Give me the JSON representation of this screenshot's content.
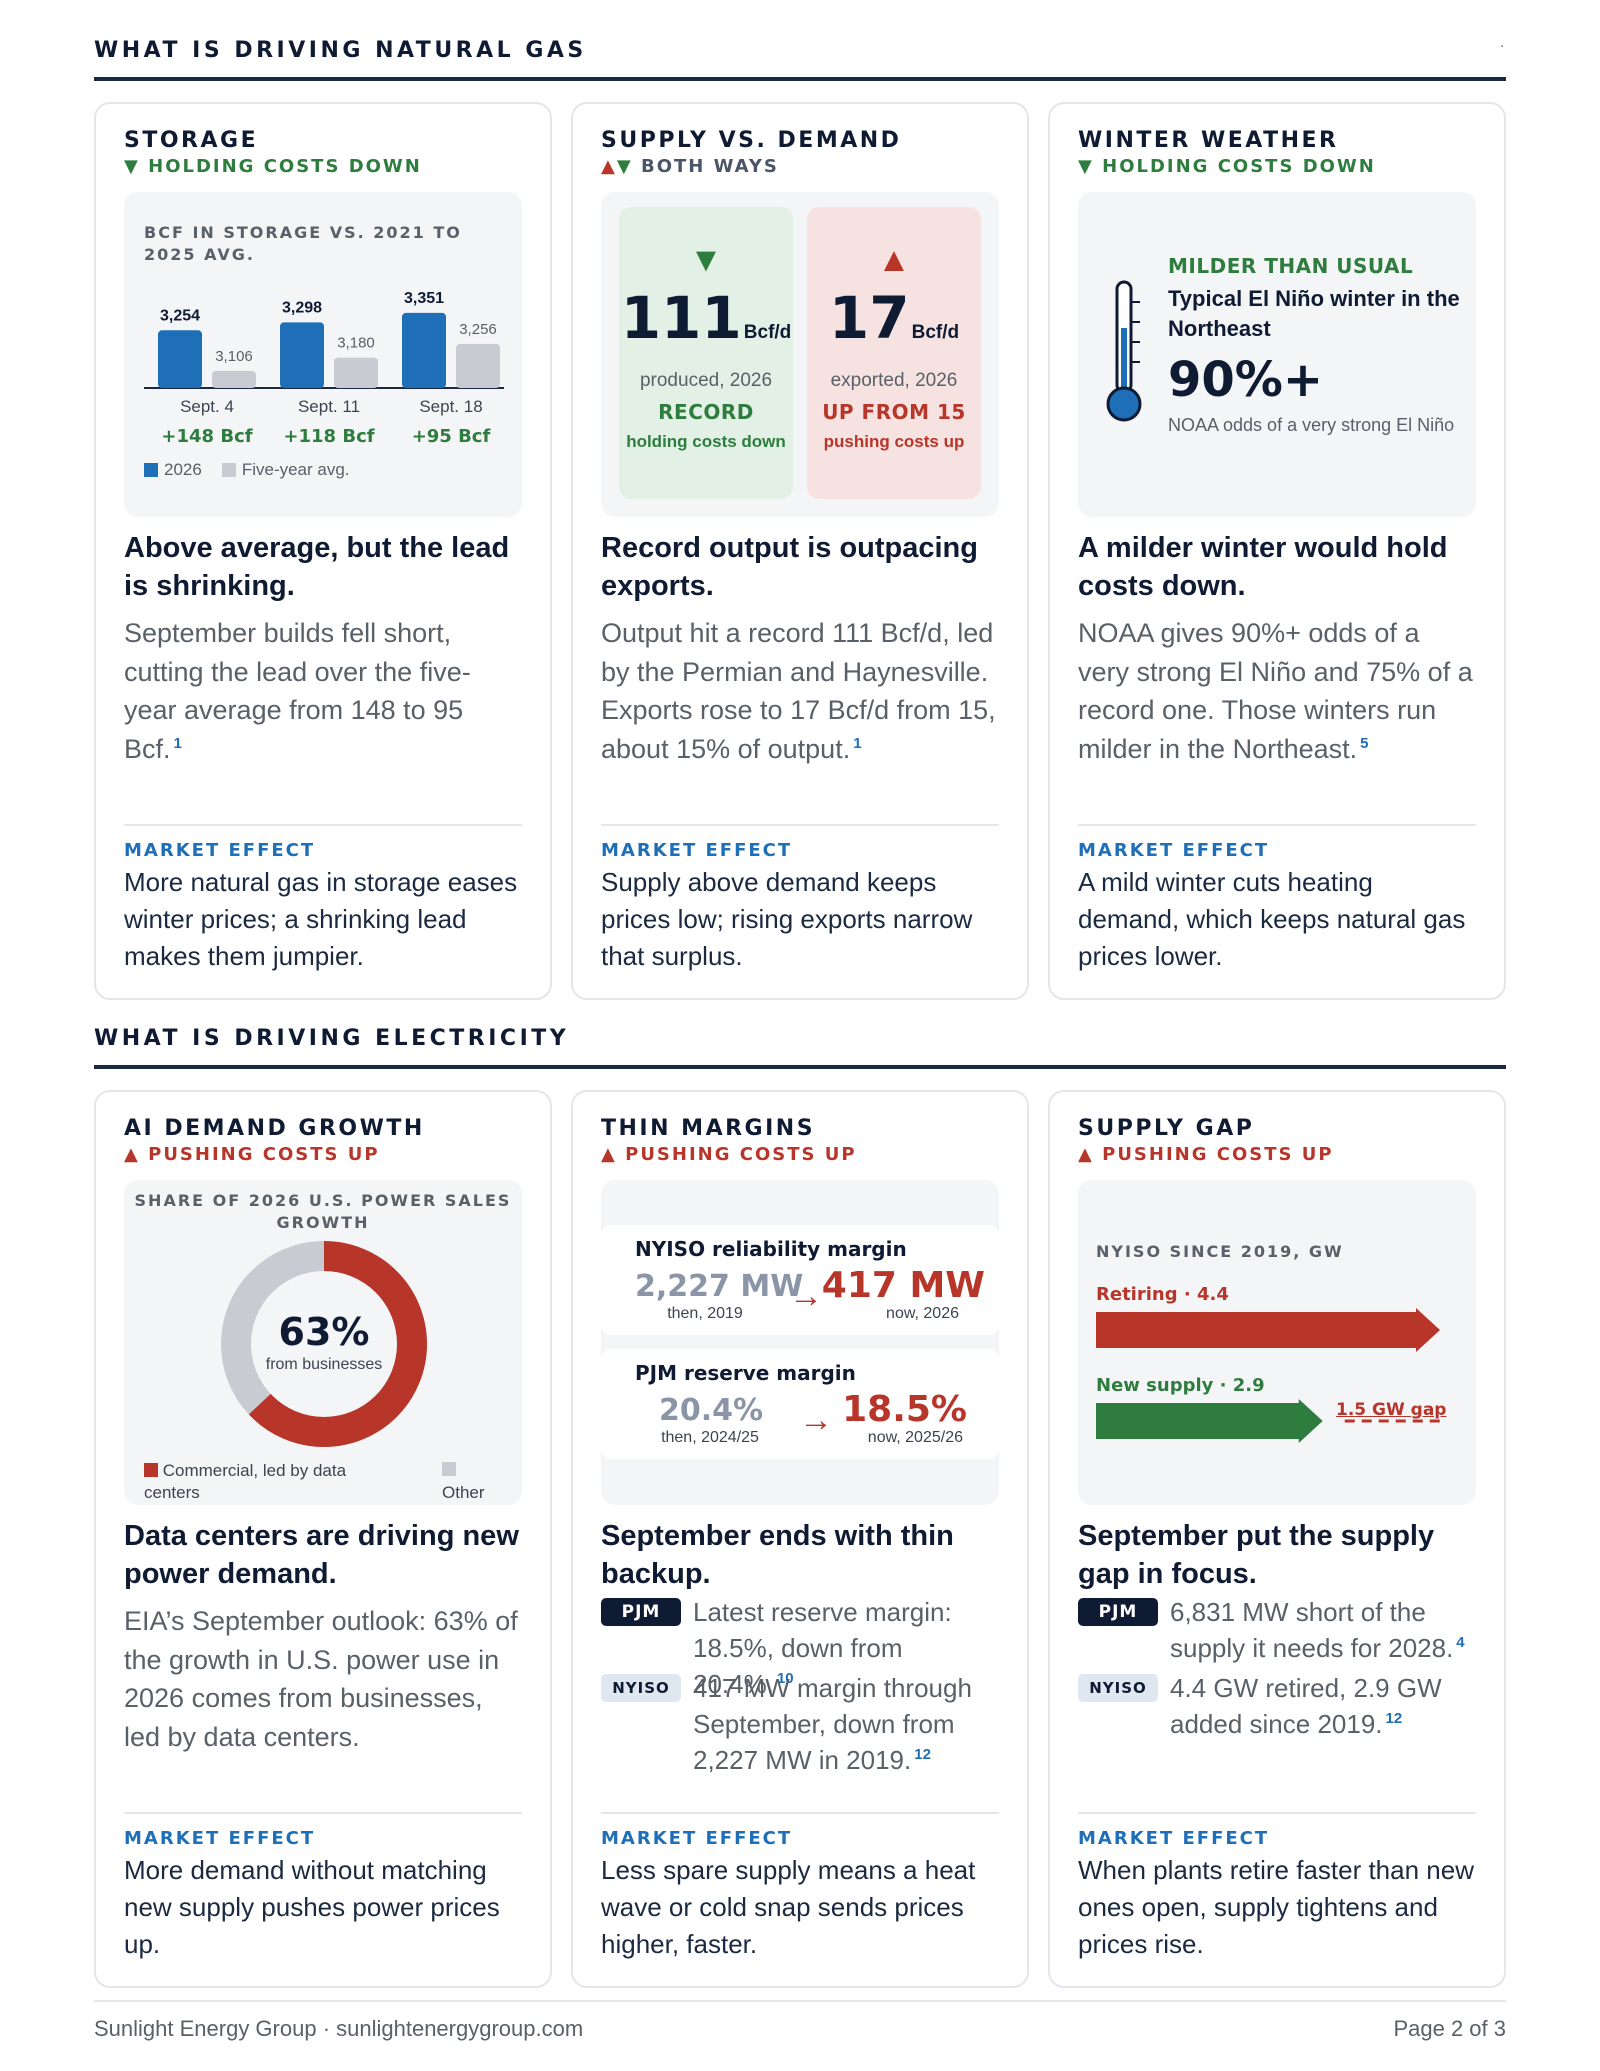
{
  "sections": {
    "gas_title": "WHAT IS DRIVING NATURAL GAS",
    "gas_dot": ".",
    "elec_title": "WHAT IS DRIVING ELECTRICITY"
  },
  "storage": {
    "title": "STORAGE",
    "status_arrow": "▼",
    "status": "HOLDING COSTS DOWN",
    "chart_title": "BCF IN STORAGE VS. 2021 TO 2025 AVG.",
    "headline": "Above average, but the lead is shrinking.",
    "body": "September builds fell short, cutting the lead over the five-year average from 148 to 95 Bcf.",
    "fn": "1",
    "effect_label": "MARKET EFFECT",
    "effect": "More natural gas in storage eases winter prices; a shrinking lead makes them jumpier.",
    "legend_2026": "2026",
    "legend_avg": "Five-year avg."
  },
  "supply_demand": {
    "title": "SUPPLY VS. DEMAND",
    "status_up": "▲",
    "status_down": "▼",
    "status": "BOTH WAYS",
    "produced_arrow": "▼",
    "produced_num": "111",
    "produced_unit": "Bcf/d",
    "produced_sub": "produced, 2026",
    "produced_tag": "RECORD",
    "produced_note": "holding costs down",
    "exported_arrow": "▲",
    "exported_num": "17",
    "exported_unit": "Bcf/d",
    "exported_sub": "exported, 2026",
    "exported_tag": "UP FROM 15",
    "exported_note": "pushing costs up",
    "headline": "Record output is outpacing exports.",
    "body": "Output hit a record 111 Bcf/d, led by the Permian and Haynesville. Exports rose to 17 Bcf/d from 15, about 15% of output.",
    "fn": "1",
    "effect_label": "MARKET EFFECT",
    "effect": "Supply above demand keeps prices low; rising exports narrow that surplus."
  },
  "winter": {
    "title": "WINTER WEATHER",
    "status_arrow": "▼",
    "status": "HOLDING COSTS DOWN",
    "tag": "MILDER THAN USUAL",
    "head": "Typical El Niño winter in the Northeast",
    "big": "90%+",
    "sub": "NOAA odds of a very strong El Niño",
    "headline": "A milder winter would hold costs down.",
    "body": "NOAA gives 90%+ odds of a very strong El Niño and 75% of a record one. Those winters run milder in the Northeast.",
    "fn": "5",
    "effect_label": "MARKET EFFECT",
    "effect": "A mild winter cuts heating demand, which keeps natural gas prices lower."
  },
  "ai": {
    "title": "AI DEMAND GROWTH",
    "status_arrow": "▲",
    "status": "PUSHING COSTS UP",
    "chart_title": "SHARE OF 2026 U.S. POWER SALES GROWTH",
    "pct": "63%",
    "pct_sub": "from businesses",
    "legend_main": "Commercial, led by data centers",
    "legend_other": "Other",
    "headline": "Data centers are driving new power demand.",
    "body": "EIA’s September outlook: 63% of the growth in U.S. power use in 2026 comes from businesses, led by data centers.",
    "effect_label": "MARKET EFFECT",
    "effect": "More demand without matching new supply pushes power prices up."
  },
  "margins": {
    "title": "THIN MARGINS",
    "status_arrow": "▲",
    "status": "PUSHING COSTS UP",
    "nyiso_title": "NYISO reliability margin",
    "nyiso_then": "2,227 MW",
    "nyiso_then_label": "then, 2019",
    "nyiso_now": "417 MW",
    "nyiso_now_label": "now, 2026",
    "pjm_title": "PJM reserve margin",
    "pjm_then": "20.4%",
    "pjm_then_label": "then, 2024/25",
    "pjm_now": "18.5%",
    "pjm_now_label": "now, 2025/26",
    "arrow": "→",
    "headline": "September ends with thin backup.",
    "b1_badge": "PJM",
    "b1_text": "Latest reserve margin: 18.5%, down from 20.4%.",
    "b1_fn": "10",
    "b2_badge": "NYISO",
    "b2_text": "417 MW margin through September, down from 2,227 MW in 2019.",
    "b2_fn": "12",
    "effect_label": "MARKET EFFECT",
    "effect": "Less spare supply means a heat wave or cold snap sends prices higher, faster."
  },
  "gap": {
    "title": "SUPPLY GAP",
    "status_arrow": "▲",
    "status": "PUSHING COSTS UP",
    "chart_title": "NYISO SINCE 2019, GW",
    "retiring": "Retiring · 4.4",
    "new_supply": "New supply · 2.9",
    "gap_label": "1.5 GW gap",
    "headline": "September put the supply gap in focus.",
    "b1_badge": "PJM",
    "b1_text": "6,831 MW short of the supply it needs for 2028.",
    "b1_fn": "4",
    "b2_badge": "NYISO",
    "b2_text": "4.4 GW retired, 2.9 GW added since 2019.",
    "b2_fn": "12",
    "effect_label": "MARKET EFFECT",
    "effect": "When plants retire faster than new ones open, supply tightens and prices rise."
  },
  "footer": {
    "left": "Sunlight Energy Group · sunlightenergygroup.com",
    "right": "Page 2 of 3"
  },
  "colors": {
    "navy": "#0f1b33",
    "green": "#2e7d3f",
    "red": "#b8352a",
    "blue": "#1f6fb8",
    "gray": "#c8ccd2"
  },
  "chart_data": [
    {
      "type": "bar",
      "title": "BCF IN STORAGE VS. 2021 TO 2025 AVG.",
      "categories": [
        "Sept. 4",
        "Sept. 11",
        "Sept. 18"
      ],
      "series": [
        {
          "name": "2026",
          "values": [
            3254,
            3298,
            3351
          ]
        },
        {
          "name": "Five-year avg.",
          "values": [
            3106,
            3180,
            3256
          ]
        }
      ],
      "value_labels_2026": [
        "3,254",
        "3,298",
        "3,351"
      ],
      "value_labels_avg": [
        "3,106",
        "3,180",
        "3,256"
      ],
      "differences": [
        "+148 Bcf",
        "+118 Bcf",
        "+95 Bcf"
      ]
    },
    {
      "type": "pie",
      "title": "SHARE OF 2026 U.S. POWER SALES GROWTH",
      "categories": [
        "Commercial, led by data centers",
        "Other"
      ],
      "values": [
        63,
        37
      ]
    },
    {
      "type": "bar",
      "title": "NYISO SINCE 2019, GW",
      "categories": [
        "Retiring",
        "New supply"
      ],
      "values": [
        4.4,
        2.9
      ]
    }
  ]
}
